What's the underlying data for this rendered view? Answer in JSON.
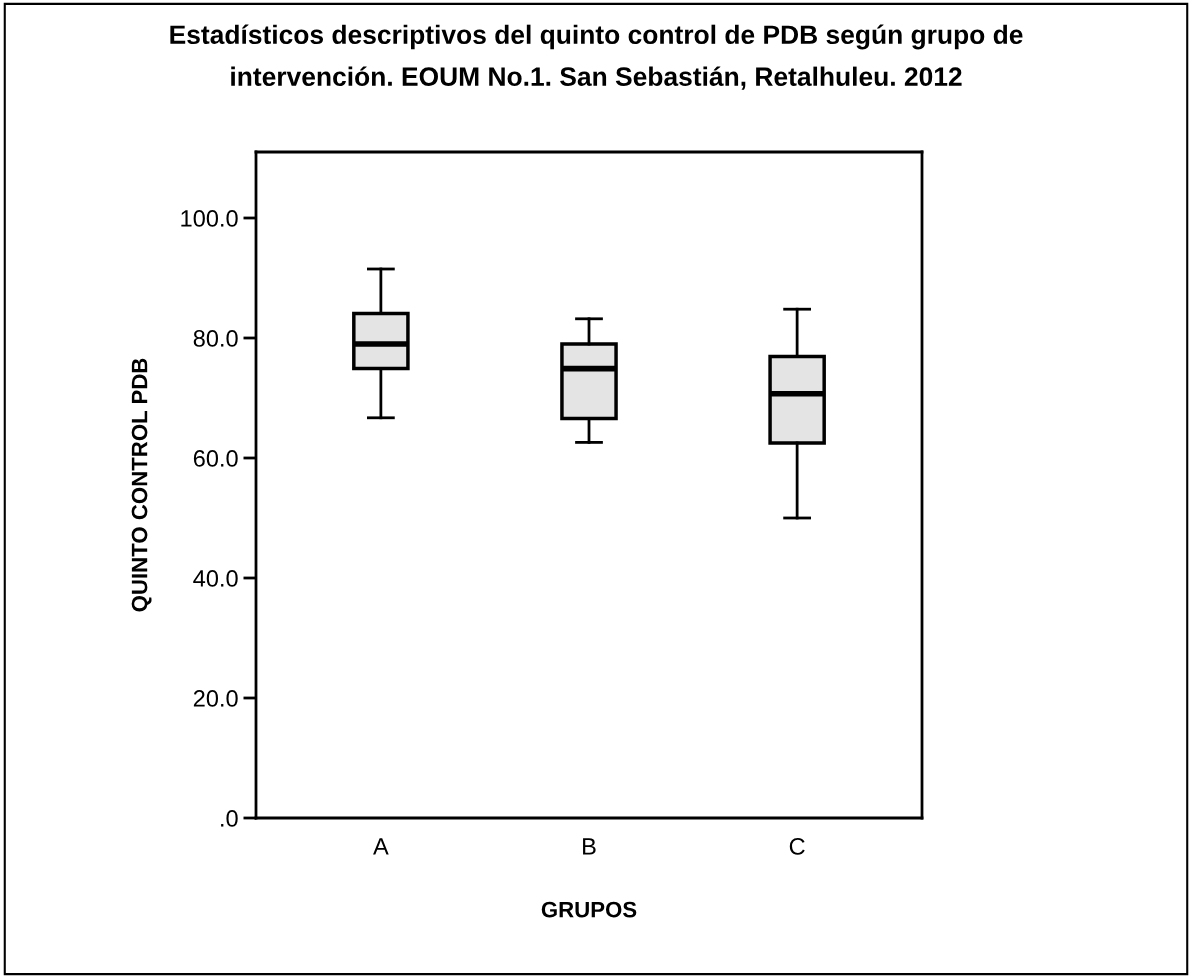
{
  "chart_data": {
    "type": "box",
    "title": "Estadísticos descriptivos del quinto control de PDB según grupo de intervención. EOUM No.1. San Sebastián, Retalhuleu. 2012",
    "xlabel": "GRUPOS",
    "ylabel": "QUINTO CONTROL PDB",
    "categories": [
      "A",
      "B",
      "C"
    ],
    "boxes": [
      {
        "low": 66.7,
        "q1": 74.9,
        "median": 79.0,
        "q3": 84.1,
        "high": 91.5
      },
      {
        "low": 62.6,
        "q1": 66.6,
        "median": 74.9,
        "q3": 79.0,
        "high": 83.2
      },
      {
        "low": 50.0,
        "q1": 62.5,
        "median": 70.7,
        "q3": 76.9,
        "high": 84.8
      }
    ],
    "color": "#e4e4e4",
    "ylim": [
      0,
      111
    ],
    "yticks": [
      {
        "value": 0,
        "label": ".0"
      },
      {
        "value": 20,
        "label": "20.0"
      },
      {
        "value": 40,
        "label": "40.0"
      },
      {
        "value": 60,
        "label": "60.0"
      },
      {
        "value": 80,
        "label": "80.0"
      },
      {
        "value": 100,
        "label": "100.0"
      }
    ],
    "grid": false,
    "legend": false
  }
}
